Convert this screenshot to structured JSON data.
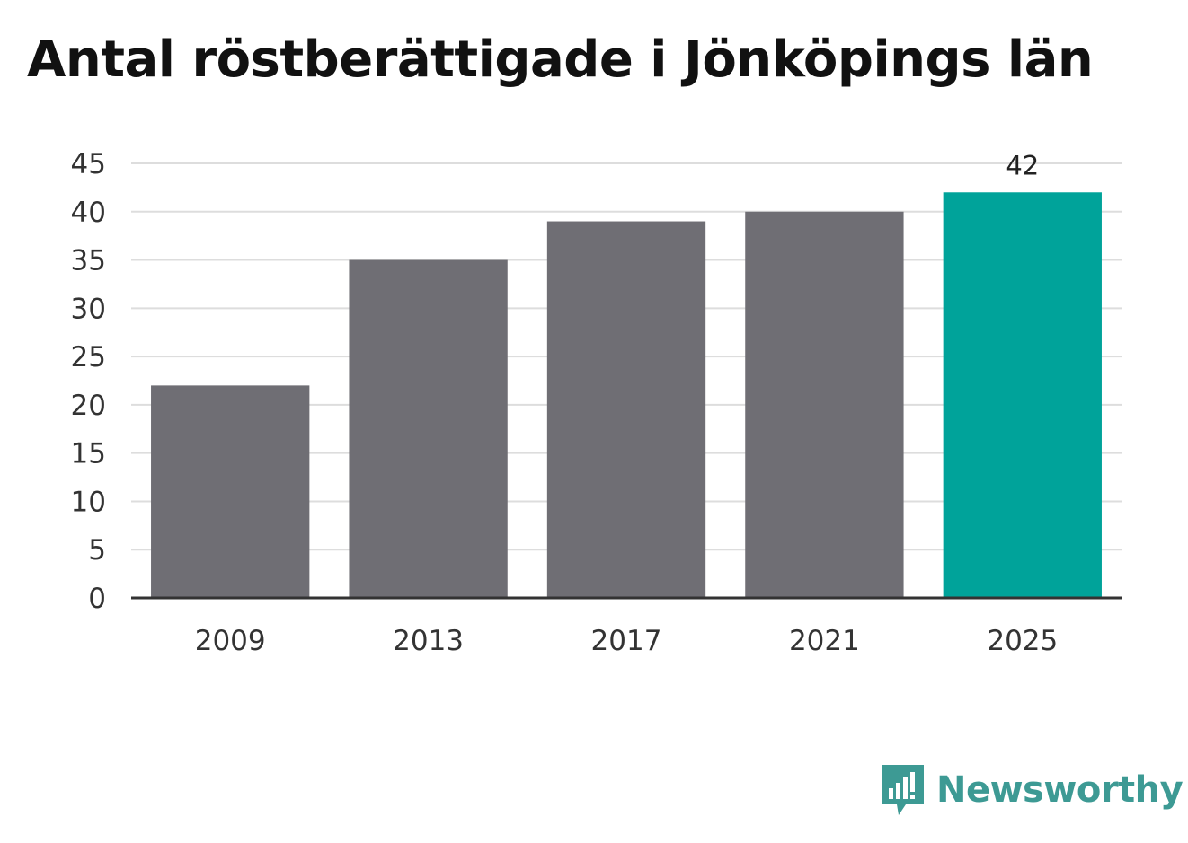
{
  "chart_data": {
    "type": "bar",
    "title": "Antal röstberättigade i Jönköpings län",
    "categories": [
      "2009",
      "2013",
      "2017",
      "2021",
      "2025"
    ],
    "values": [
      22,
      35,
      39,
      40,
      42
    ],
    "ylim": [
      0,
      45
    ],
    "yticks": [
      0,
      5,
      10,
      15,
      20,
      25,
      30,
      35,
      40,
      45
    ],
    "grid": true,
    "data_labels": [
      {
        "category": "2025",
        "text": "42"
      }
    ],
    "colors": {
      "default": "#6f6e74",
      "highlight": "#00a39a",
      "grid": "#dddddd",
      "axis": "#333333"
    },
    "highlight_category": "2025"
  },
  "branding": {
    "logo_text": "Newsworthy",
    "logo_icon": "chart-bubble-icon",
    "logo_color": "#3d9a94"
  }
}
